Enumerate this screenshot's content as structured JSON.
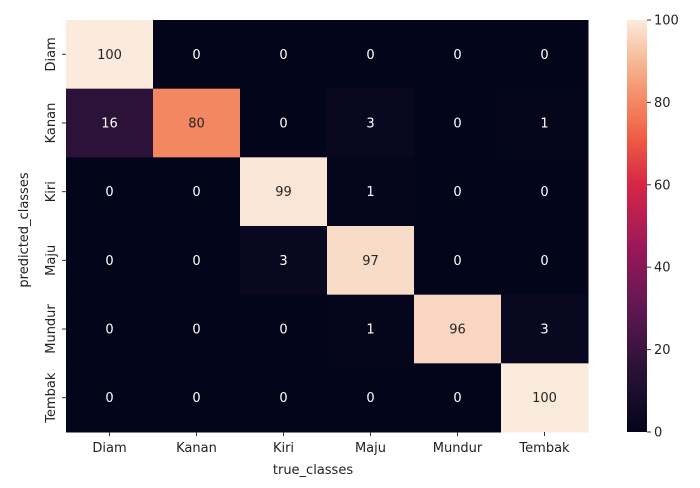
{
  "chart_data": {
    "type": "heatmap",
    "title": "",
    "xlabel": "true_classes",
    "ylabel": "predicted_classes",
    "x_categories": [
      "Diam",
      "Kanan",
      "Kiri",
      "Maju",
      "Mundur",
      "Tembak"
    ],
    "y_categories": [
      "Diam",
      "Kanan",
      "Kiri",
      "Maju",
      "Mundur",
      "Tembak"
    ],
    "values": [
      [
        100,
        0,
        0,
        0,
        0,
        0
      ],
      [
        16,
        80,
        0,
        3,
        0,
        1
      ],
      [
        0,
        0,
        99,
        1,
        0,
        0
      ],
      [
        0,
        0,
        3,
        97,
        0,
        0
      ],
      [
        0,
        0,
        0,
        1,
        96,
        3
      ],
      [
        0,
        0,
        0,
        0,
        0,
        100
      ]
    ],
    "colorbar": {
      "range": [
        0,
        100
      ],
      "ticks": [
        0,
        20,
        40,
        60,
        80,
        100
      ],
      "colormap": "rocket"
    }
  }
}
